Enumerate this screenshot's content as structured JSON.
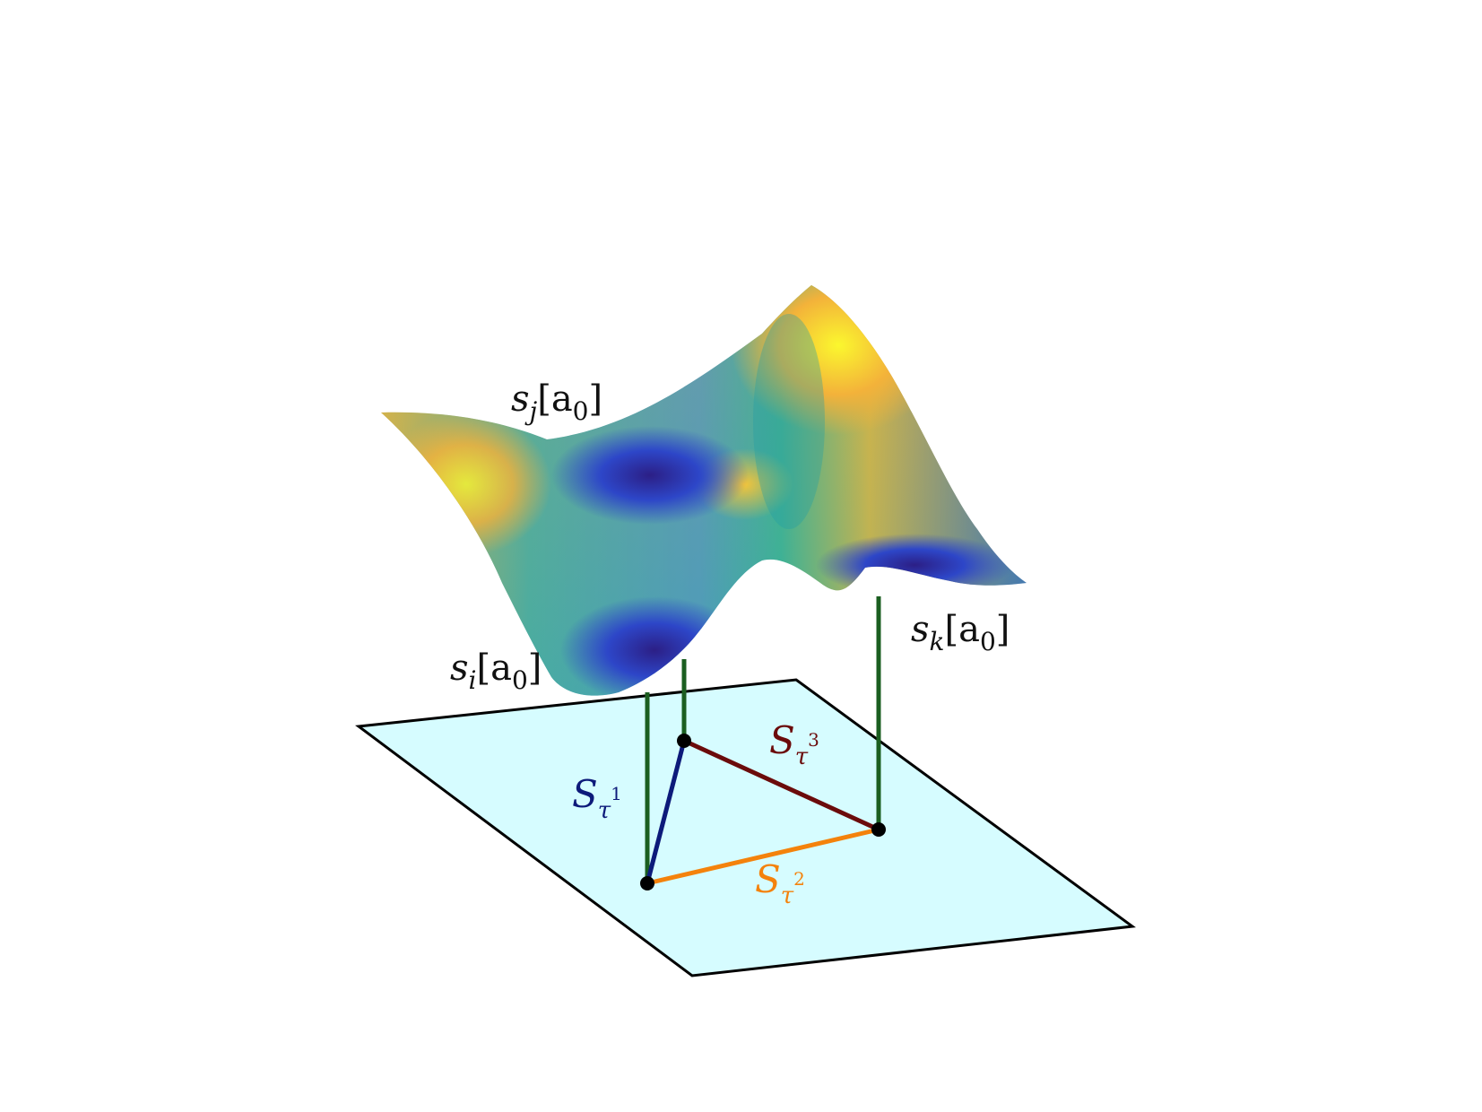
{
  "labels": {
    "s_i": {
      "base": "s",
      "sub": "i",
      "arg": "[a",
      "arg_sub": "0",
      "close": "]"
    },
    "s_j": {
      "base": "s",
      "sub": "j",
      "arg": "[a",
      "arg_sub": "0",
      "close": "]"
    },
    "s_k": {
      "base": "s",
      "sub": "k",
      "arg": "[a",
      "arg_sub": "0",
      "close": "]"
    },
    "S_tau1": {
      "base": "S",
      "sub": "τ",
      "sup": "1"
    },
    "S_tau2": {
      "base": "S",
      "sub": "τ",
      "sup": "2"
    },
    "S_tau3": {
      "base": "S",
      "sub": "τ",
      "sup": "3"
    }
  },
  "colors": {
    "plane_fill": "#d6fcff",
    "plane_edge": "#000000",
    "stem": "#1b5e20",
    "edge_tau1": "#0d1a7a",
    "edge_tau2": "#f4820c",
    "edge_tau3": "#6b0b0b",
    "vertex": "#000000",
    "label_text": "#111111",
    "colormap_low": "#2b1f8e",
    "colormap_mid": "#1fae9a",
    "colormap_high": "#f8f32b"
  }
}
